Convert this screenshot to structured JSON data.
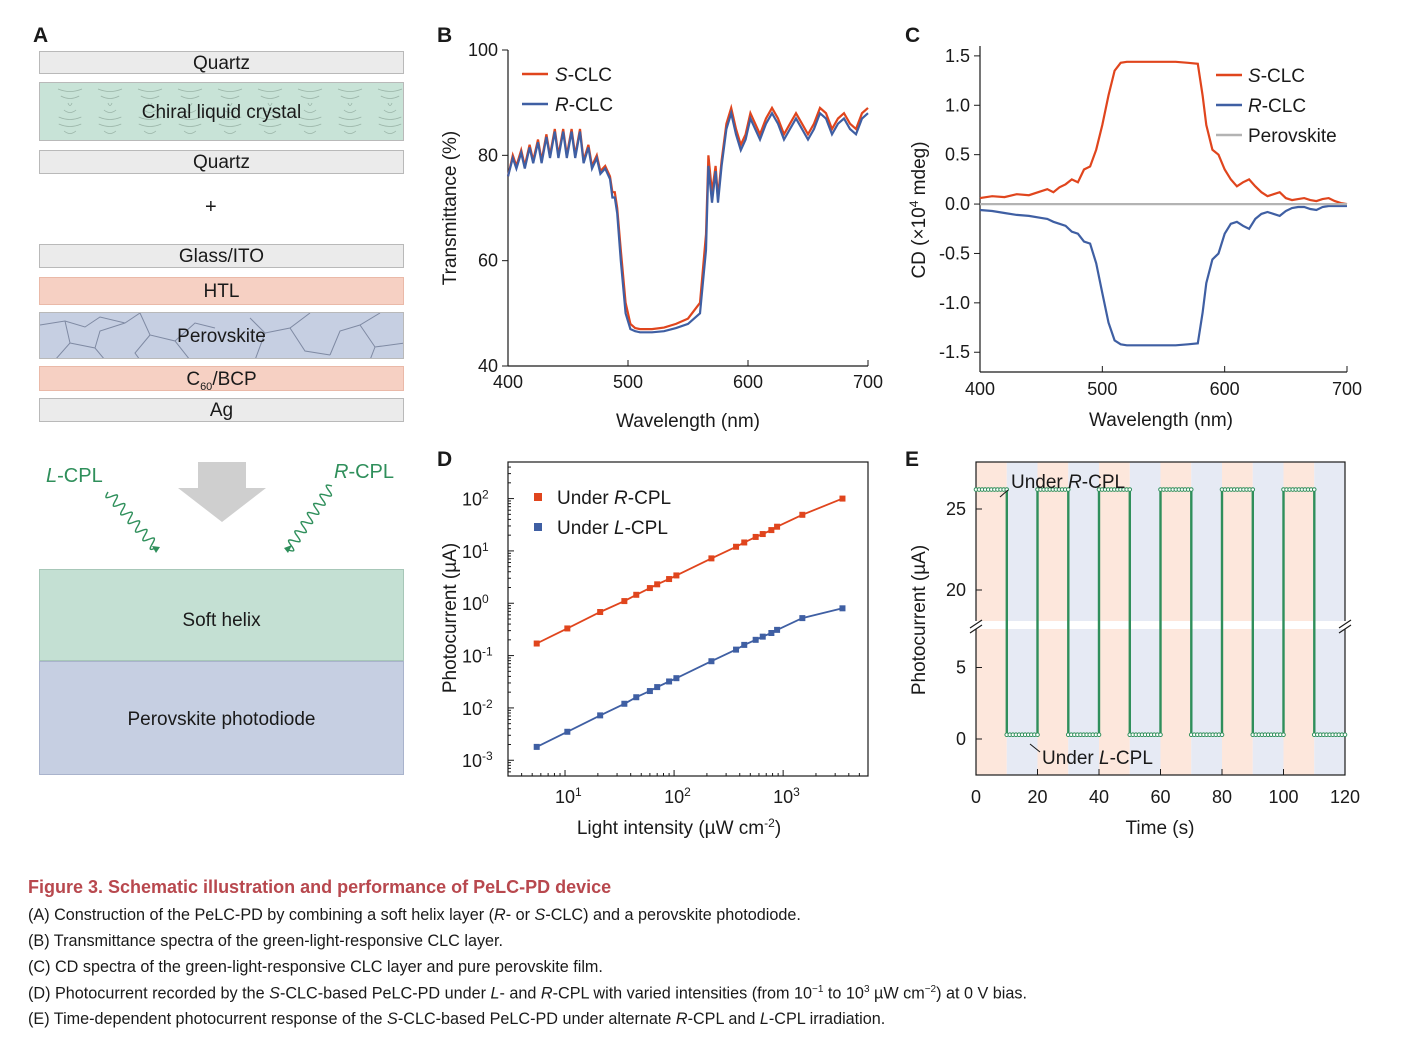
{
  "panels": {
    "A": "A",
    "B": "B",
    "C": "C",
    "D": "D",
    "E": "E"
  },
  "schematic": {
    "layers": [
      "Quartz",
      "Chiral liquid crystal",
      "Quartz",
      "+",
      "Glass/ITO",
      "HTL",
      "Perovskite",
      "Ag"
    ],
    "c60_base": "C",
    "c60_sub": "60",
    "c60_rest": "/BCP",
    "soft_helix": "Soft helix",
    "photodiode": "Perovskite photodiode",
    "lcpl_italic": "L",
    "rcpl_italic": "R",
    "cpl_suffix": "-CPL",
    "colors": {
      "quartz": "#ebebeb",
      "clc": "#c8e3d7",
      "htl": "#f6d0c3",
      "perovskite": "#c6cfe2",
      "helix": "#c4e0d3",
      "photodiode": "#c6cfe2",
      "wave": "#2f8f5b",
      "arrow": "#cfcfcf"
    }
  },
  "chart_data": [
    {
      "id": "B",
      "type": "line",
      "xlabel": "Wavelength (nm)",
      "ylabel": "Transmittance (%)",
      "xlim": [
        400,
        700
      ],
      "ylim": [
        40,
        100
      ],
      "xticks": [
        400,
        500,
        600,
        700
      ],
      "yticks": [
        40,
        60,
        80,
        100
      ],
      "series": [
        {
          "name": "S-CLC",
          "name_italic": "S",
          "name_rest": "-CLC",
          "color": "#e0451d",
          "x": [
            400,
            404,
            407,
            411,
            414,
            418,
            421,
            425,
            428,
            432,
            435,
            439,
            442,
            446,
            449,
            453,
            456,
            460,
            463,
            467,
            470,
            474,
            477,
            481,
            485,
            487,
            489,
            491,
            494,
            498,
            502,
            506,
            510,
            515,
            520,
            530,
            540,
            550,
            560,
            565,
            567,
            570,
            573,
            575,
            578,
            582,
            586,
            590,
            594,
            598,
            602,
            606,
            610,
            615,
            620,
            625,
            630,
            635,
            640,
            645,
            650,
            655,
            660,
            665,
            670,
            675,
            680,
            685,
            690,
            695,
            700
          ],
          "y": [
            76,
            80,
            78,
            81,
            78,
            82,
            79,
            83,
            79,
            84,
            80,
            85,
            80,
            85,
            80,
            85,
            80,
            85,
            79,
            82,
            78,
            80,
            77,
            78,
            76,
            73,
            73,
            70,
            62,
            52,
            48,
            47.2,
            47,
            47,
            47,
            47.3,
            48,
            49,
            52,
            65,
            80,
            73,
            78,
            72,
            79,
            86,
            89,
            85,
            82,
            84,
            88,
            86,
            84,
            87,
            89,
            87,
            84,
            86,
            88,
            86,
            84,
            86,
            89,
            88,
            85,
            87,
            88,
            86,
            85,
            88,
            89
          ]
        },
        {
          "name": "R-CLC",
          "name_italic": "R",
          "name_rest": "-CLC",
          "color": "#3f5fa3",
          "x": [
            400,
            404,
            407,
            411,
            414,
            418,
            421,
            425,
            428,
            432,
            435,
            439,
            442,
            446,
            449,
            453,
            456,
            460,
            463,
            467,
            470,
            474,
            477,
            481,
            485,
            487,
            489,
            491,
            494,
            498,
            502,
            506,
            510,
            515,
            520,
            530,
            540,
            550,
            560,
            565,
            567,
            570,
            573,
            575,
            578,
            582,
            586,
            590,
            594,
            598,
            602,
            606,
            610,
            615,
            620,
            625,
            630,
            635,
            640,
            645,
            650,
            655,
            660,
            665,
            670,
            675,
            680,
            685,
            690,
            695,
            700
          ],
          "y": [
            76,
            79.5,
            77.5,
            80.5,
            77.5,
            81.5,
            78.5,
            82.5,
            78.5,
            83.5,
            79.5,
            84.5,
            79.5,
            84.5,
            79.5,
            84.5,
            79.5,
            84.5,
            78.5,
            81.5,
            77.5,
            79.5,
            76.5,
            77.5,
            75.5,
            72,
            72,
            69,
            60,
            50,
            47,
            46.6,
            46.4,
            46.4,
            46.4,
            46.6,
            47.2,
            48,
            50,
            62,
            78,
            71,
            77,
            71,
            78,
            85,
            88,
            84,
            81,
            83,
            87,
            85,
            83,
            86,
            88,
            86,
            83,
            85,
            87,
            85,
            83,
            85,
            88,
            87,
            84,
            86,
            87,
            85,
            84,
            87,
            88
          ]
        }
      ]
    },
    {
      "id": "C",
      "type": "line",
      "xlabel": "Wavelength (nm)",
      "ylabel_prefix": "CD (×10",
      "ylabel_sup": "4",
      "ylabel_suffix": " mdeg)",
      "xlim": [
        400,
        700
      ],
      "ylim": [
        -1.7,
        1.6
      ],
      "xticks": [
        400,
        500,
        600,
        700
      ],
      "yticks": [
        -1.5,
        -1.0,
        -0.5,
        0.0,
        0.5,
        1.0,
        1.5
      ],
      "ytick_labels": [
        "-1.5",
        "-1.0",
        "-0.5",
        "0.0",
        "0.5",
        "1.0",
        "1.5"
      ],
      "series": [
        {
          "name": "S-CLC",
          "name_italic": "S",
          "name_rest": "-CLC",
          "color": "#e0451d",
          "x": [
            400,
            410,
            420,
            430,
            440,
            450,
            455,
            460,
            465,
            470,
            475,
            480,
            485,
            490,
            495,
            500,
            505,
            510,
            515,
            520,
            530,
            540,
            550,
            560,
            570,
            578,
            582,
            585,
            590,
            595,
            600,
            605,
            610,
            615,
            620,
            625,
            630,
            635,
            640,
            645,
            650,
            655,
            660,
            665,
            670,
            675,
            680,
            685,
            690,
            695,
            700
          ],
          "y": [
            0.06,
            0.08,
            0.07,
            0.1,
            0.09,
            0.13,
            0.15,
            0.12,
            0.17,
            0.2,
            0.25,
            0.22,
            0.35,
            0.38,
            0.55,
            0.8,
            1.1,
            1.35,
            1.43,
            1.44,
            1.44,
            1.44,
            1.44,
            1.44,
            1.43,
            1.42,
            1.1,
            0.8,
            0.55,
            0.5,
            0.35,
            0.25,
            0.18,
            0.22,
            0.25,
            0.18,
            0.12,
            0.08,
            0.1,
            0.12,
            0.06,
            0.04,
            0.05,
            0.06,
            0.04,
            0.03,
            0.05,
            0.06,
            0.03,
            0.01,
            0.0
          ]
        },
        {
          "name": "R-CLC",
          "name_italic": "R",
          "name_rest": "-CLC",
          "color": "#3f5fa3",
          "x": [
            400,
            410,
            420,
            430,
            440,
            450,
            455,
            460,
            465,
            470,
            475,
            480,
            485,
            490,
            495,
            500,
            505,
            510,
            515,
            520,
            530,
            540,
            550,
            560,
            570,
            578,
            582,
            585,
            590,
            595,
            600,
            605,
            610,
            615,
            620,
            625,
            630,
            635,
            640,
            645,
            650,
            655,
            660,
            665,
            670,
            675,
            680,
            685,
            690,
            695,
            700
          ],
          "y": [
            -0.06,
            -0.07,
            -0.09,
            -0.11,
            -0.12,
            -0.14,
            -0.15,
            -0.18,
            -0.2,
            -0.22,
            -0.28,
            -0.3,
            -0.38,
            -0.4,
            -0.6,
            -0.9,
            -1.2,
            -1.38,
            -1.42,
            -1.43,
            -1.43,
            -1.43,
            -1.43,
            -1.43,
            -1.42,
            -1.41,
            -1.1,
            -0.8,
            -0.56,
            -0.5,
            -0.3,
            -0.2,
            -0.18,
            -0.22,
            -0.25,
            -0.15,
            -0.1,
            -0.08,
            -0.1,
            -0.12,
            -0.07,
            -0.04,
            -0.03,
            -0.03,
            -0.05,
            -0.06,
            -0.03,
            -0.02,
            -0.02,
            -0.02,
            -0.02
          ]
        },
        {
          "name": "Perovskite",
          "color": "#b3b3b3",
          "x": [
            400,
            700
          ],
          "y": [
            0.0,
            0.0
          ]
        }
      ]
    },
    {
      "id": "D",
      "type": "scatter",
      "xlabel_prefix": "Light intensity (µW cm",
      "xlabel_sup": "-2",
      "xlabel_suffix": ")",
      "ylabel": "Photocurrent (µA)",
      "xscale": "log",
      "yscale": "log",
      "xlim": [
        3,
        6000
      ],
      "ylim": [
        0.0005,
        500
      ],
      "xtick_exps": [
        "1",
        "2",
        "3"
      ],
      "ytick_exps": [
        "-3",
        "-2",
        "-1",
        "0",
        "1",
        "2"
      ],
      "series": [
        {
          "name": "Under R-CPL",
          "name_pre": "Under ",
          "name_italic": "R",
          "name_rest": "-CPL",
          "color": "#e0451d",
          "x": [
            5.5,
            10.5,
            21,
            35,
            45,
            60,
            70,
            90,
            105,
            220,
            370,
            440,
            560,
            650,
            780,
            880,
            1500,
            3500
          ],
          "y": [
            0.17,
            0.33,
            0.68,
            1.1,
            1.45,
            1.95,
            2.3,
            2.9,
            3.4,
            7.2,
            12,
            14.5,
            18.5,
            21,
            25,
            29,
            49,
            100
          ]
        },
        {
          "name": "Under L-CPL",
          "name_pre": "Under ",
          "name_italic": "L",
          "name_rest": "-CPL",
          "color": "#3f5fa3",
          "x": [
            5.5,
            10.5,
            21,
            35,
            45,
            60,
            70,
            90,
            105,
            220,
            370,
            440,
            560,
            650,
            780,
            880,
            1500,
            3500
          ],
          "y": [
            0.0018,
            0.0035,
            0.0072,
            0.012,
            0.016,
            0.021,
            0.025,
            0.032,
            0.037,
            0.078,
            0.13,
            0.16,
            0.2,
            0.23,
            0.27,
            0.31,
            0.52,
            0.8
          ]
        }
      ]
    },
    {
      "id": "E",
      "type": "line",
      "xlabel": "Time (s)",
      "ylabel": "Photocurrent (µA)",
      "xlim": [
        0,
        120
      ],
      "xticks": [
        0,
        20,
        40,
        60,
        80,
        100,
        120
      ],
      "yticks": [
        0,
        5,
        20,
        25
      ],
      "high": 26.2,
      "low": 0.3,
      "period_s": 20,
      "high_duration_s": 10,
      "cycles": 6,
      "line_color": "#2f8f5b",
      "shade_high_color": "#fde7dc",
      "shade_low_color": "#e6eaf4",
      "annot_top_pre": "Under ",
      "annot_top_italic": "R",
      "annot_top_rest": "-CPL",
      "annot_bottom_pre": "Under ",
      "annot_bottom_italic": "L",
      "annot_bottom_rest": "-CPL"
    }
  ],
  "caption": {
    "title": "Figure 3.  Schematic illustration and performance of PeLC-PD device",
    "a_1": "(A) Construction of the PeLC-PD by combining a soft helix layer (",
    "a_i1": "R",
    "a_2": "- or ",
    "a_i2": "S",
    "a_3": "-CLC) and a perovskite photodiode.",
    "b": "(B) Transmittance spectra of the green-light-responsive CLC layer.",
    "c": "(C) CD spectra of the green-light-responsive CLC layer and pure perovskite film.",
    "d_1": "(D) Photocurrent recorded by the ",
    "d_i1": "S",
    "d_2": "-CLC-based PeLC-PD under ",
    "d_i2": "L",
    "d_3": "- and ",
    "d_i3": "R",
    "d_4": "-CPL with varied intensities (from 10",
    "d_sup1": "−1",
    "d_5": " to 10",
    "d_sup2": "3",
    "d_6": " µW cm",
    "d_sup3": "−2",
    "d_7": ") at 0 V bias.",
    "e_1": "(E) Time-dependent photocurrent response of the ",
    "e_i1": "S",
    "e_2": "-CLC-based PeLC-PD under alternate ",
    "e_i2": "R",
    "e_3": "-CPL and ",
    "e_i3": "L",
    "e_4": "-CPL irradiation."
  }
}
